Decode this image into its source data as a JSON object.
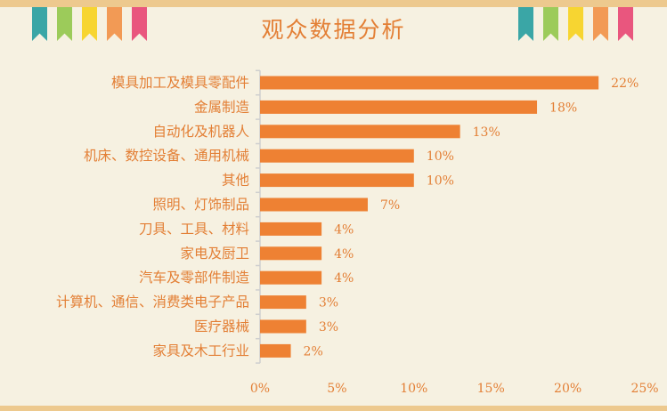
{
  "title": "观众数据分析",
  "flags": {
    "left": [
      "#3aa6a6",
      "#9ccb5a",
      "#f7d531",
      "#f29a55",
      "#e9567e"
    ],
    "right": [
      "#3aa6a6",
      "#9ccb5a",
      "#f7d531",
      "#f29a55",
      "#e9567e"
    ]
  },
  "colors": {
    "bar": "#ee8133",
    "text": "#e37f35",
    "axis": "#cfcfcf",
    "background": "#f6f1e1"
  },
  "chart_data": {
    "type": "bar",
    "orientation": "horizontal",
    "categories": [
      "模具加工及模具零配件",
      "金属制造",
      "自动化及机器人",
      "机床、数控设备、通用机械",
      "其他",
      "照明、灯饰制品",
      "刀具、工具、材料",
      "家电及厨卫",
      "汽车及零部件制造",
      "计算机、通信、消费类电子产品",
      "医疗器械",
      "家具及木工行业"
    ],
    "values": [
      22,
      18,
      13,
      10,
      10,
      7,
      4,
      4,
      4,
      3,
      3,
      2
    ],
    "value_labels": [
      "22%",
      "18%",
      "13%",
      "10%",
      "10%",
      "7%",
      "4%",
      "4%",
      "4%",
      "3%",
      "3%",
      "2%"
    ],
    "xlim": [
      0,
      25
    ],
    "xticks": [
      0,
      5,
      10,
      15,
      20,
      25
    ],
    "xtick_labels": [
      "0%",
      "5%",
      "10%",
      "15%",
      "20%",
      "25%"
    ],
    "grid": false
  }
}
